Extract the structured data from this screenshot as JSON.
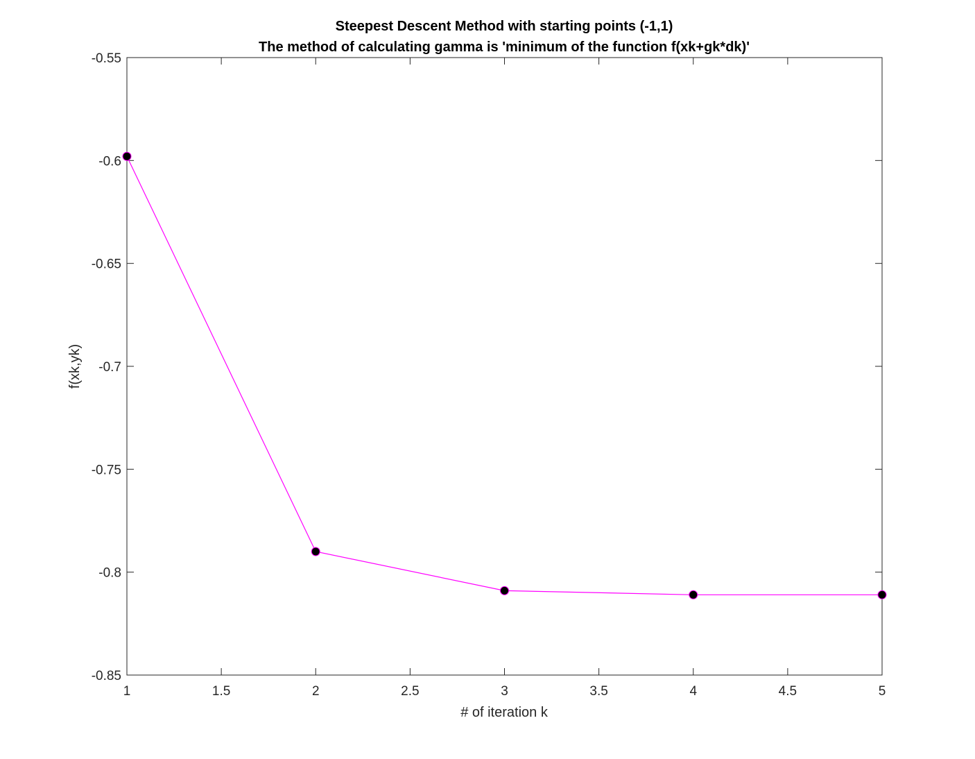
{
  "chart_data": {
    "type": "line",
    "title": "Steepest Descent Method with starting points (-1,1)",
    "subtitle": "The method of calculating gamma is  'minimum of the function f(xk+gk*dk)'",
    "xlabel": "# of iteration k",
    "ylabel": "f(xk,yk)",
    "xlim": [
      1,
      5
    ],
    "ylim": [
      -0.85,
      -0.55
    ],
    "x_ticks": [
      "1",
      "1.5",
      "2",
      "2.5",
      "3",
      "3.5",
      "4",
      "4.5",
      "5"
    ],
    "y_ticks": [
      "-0.85",
      "-0.8",
      "-0.75",
      "-0.7",
      "-0.65",
      "-0.6",
      "-0.55"
    ],
    "grid": false,
    "series": [
      {
        "x": [
          1,
          2,
          3,
          4,
          5
        ],
        "y": [
          -0.598,
          -0.79,
          -0.809,
          -0.811,
          -0.811
        ],
        "line_color": "#ff00ff",
        "marker_face_color": "#000000",
        "marker_edge_color": "#ff00ff"
      }
    ]
  }
}
